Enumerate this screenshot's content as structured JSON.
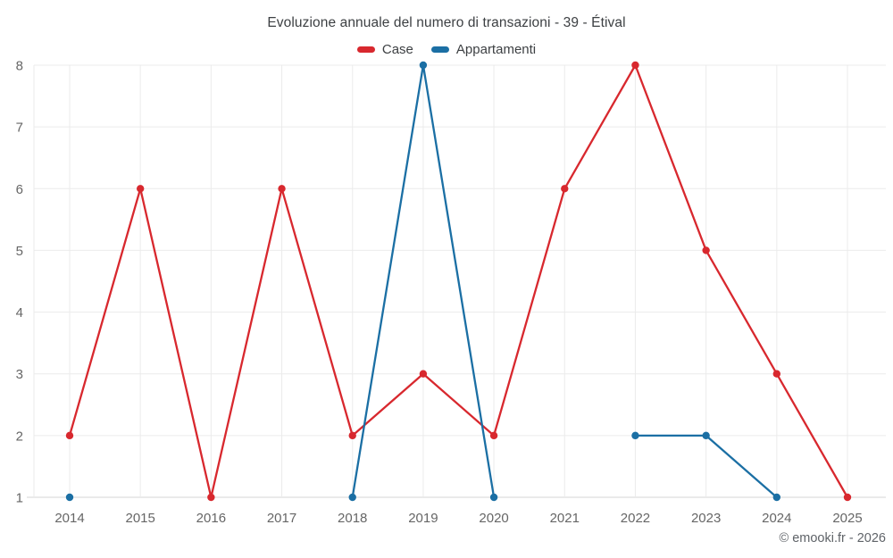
{
  "title": "Evoluzione annuale del numero di transazioni - 39 - Étival",
  "attribution": "© emooki.fr - 2026",
  "colors": {
    "case_red": "#d8282e",
    "appartamenti_blue": "#1b6fa4",
    "grid": "#ebebeb",
    "baseline": "#d5d5d5",
    "tick_text": "#666666",
    "title_text": "#3d4043"
  },
  "chart_data": {
    "type": "line",
    "title": "Evoluzione annuale del numero di transazioni - 39 - Étival",
    "x": [
      2014,
      2015,
      2016,
      2017,
      2018,
      2019,
      2020,
      2021,
      2022,
      2023,
      2024,
      2025
    ],
    "series": [
      {
        "name": "Case",
        "color": "#d8282e",
        "values": [
          2,
          6,
          1,
          6,
          2,
          3,
          2,
          6,
          8,
          5,
          3,
          1
        ]
      },
      {
        "name": "Appartamenti",
        "color": "#1b6fa4",
        "values": [
          1,
          null,
          null,
          null,
          1,
          8,
          1,
          null,
          2,
          2,
          1,
          null
        ]
      }
    ],
    "xlabel": "",
    "ylabel": "",
    "ylim": [
      1,
      8
    ],
    "yticks": [
      1,
      2,
      3,
      4,
      5,
      6,
      7,
      8
    ],
    "grid": "on",
    "legend_position": "top"
  }
}
